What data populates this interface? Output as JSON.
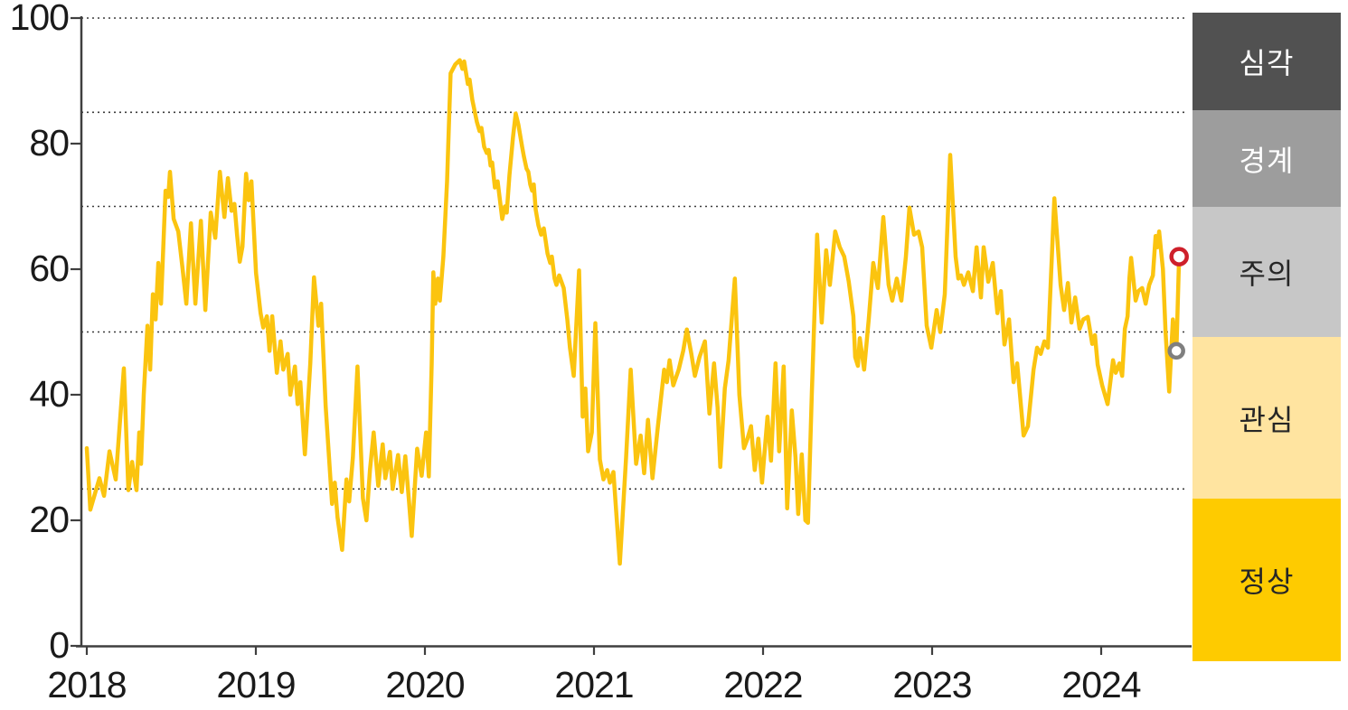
{
  "chart_data": {
    "type": "line",
    "title": "",
    "x_axis": {
      "tick_labels": [
        "2018",
        "2019",
        "2020",
        "2021",
        "2022",
        "2023",
        "2024"
      ],
      "tick_year_offsets": [
        0,
        1,
        2,
        3,
        4,
        5,
        6
      ],
      "range_years": [
        2018,
        2024.5
      ]
    },
    "y_axis": {
      "ticks": [
        0,
        20,
        40,
        60,
        80,
        100
      ],
      "range": [
        0,
        100
      ],
      "dotted_gridlines_at": [
        25,
        50,
        70,
        85,
        100
      ]
    },
    "line_color": "#FBC40F",
    "zones": [
      {
        "key": "severe",
        "label": "심각",
        "range": [
          85,
          100
        ],
        "color": "#515151",
        "text_color": "#ffffff"
      },
      {
        "key": "alert",
        "label": "경계",
        "range": [
          70,
          85
        ],
        "color": "#9D9D9D",
        "text_color": "#ffffff"
      },
      {
        "key": "caution",
        "label": "주의",
        "range": [
          50,
          70
        ],
        "color": "#C7C7C7",
        "text_color": "#262626"
      },
      {
        "key": "attention",
        "label": "관심",
        "range": [
          25,
          50
        ],
        "color": "#FFE4A0",
        "text_color": "#262626"
      },
      {
        "key": "normal",
        "label": "정상",
        "range": [
          0,
          25
        ],
        "color": "#FECB00",
        "text_color": "#262626"
      }
    ],
    "markers": [
      {
        "key": "previous-point",
        "year_offset": 6.445,
        "value": 47,
        "color": "#7F7F7F",
        "radius": 7.5
      },
      {
        "key": "latest-point",
        "year_offset": 6.461,
        "value": 62,
        "color": "#CE202B",
        "radius": 8.5
      }
    ],
    "points_year_offset_value": [
      [
        0.0,
        31.5
      ],
      [
        0.021,
        21.7
      ],
      [
        0.075,
        26.7
      ],
      [
        0.102,
        23.9
      ],
      [
        0.134,
        31.0
      ],
      [
        0.171,
        26.5
      ],
      [
        0.219,
        44.2
      ],
      [
        0.246,
        24.8
      ],
      [
        0.268,
        29.3
      ],
      [
        0.294,
        24.8
      ],
      [
        0.31,
        34.0
      ],
      [
        0.321,
        29.0
      ],
      [
        0.337,
        40.0
      ],
      [
        0.359,
        51.0
      ],
      [
        0.375,
        44.0
      ],
      [
        0.391,
        56.0
      ],
      [
        0.407,
        52.0
      ],
      [
        0.423,
        61.0
      ],
      [
        0.439,
        54.5
      ],
      [
        0.466,
        72.5
      ],
      [
        0.482,
        71.5
      ],
      [
        0.492,
        75.5
      ],
      [
        0.514,
        68.0
      ],
      [
        0.541,
        66.0
      ],
      [
        0.567,
        60.0
      ],
      [
        0.589,
        54.5
      ],
      [
        0.616,
        67.3
      ],
      [
        0.642,
        54.5
      ],
      [
        0.675,
        67.7
      ],
      [
        0.701,
        53.5
      ],
      [
        0.733,
        69.0
      ],
      [
        0.76,
        65.0
      ],
      [
        0.787,
        75.5
      ],
      [
        0.814,
        68.3
      ],
      [
        0.835,
        74.5
      ],
      [
        0.856,
        69.3
      ],
      [
        0.873,
        70.4
      ],
      [
        0.889,
        65.5
      ],
      [
        0.905,
        61.2
      ],
      [
        0.921,
        63.6
      ],
      [
        0.942,
        75.2
      ],
      [
        0.958,
        71.0
      ],
      [
        0.974,
        74.0
      ],
      [
        1.001,
        59.4
      ],
      [
        1.028,
        53.0
      ],
      [
        1.044,
        50.7
      ],
      [
        1.065,
        52.5
      ],
      [
        1.081,
        47.0
      ],
      [
        1.097,
        52.5
      ],
      [
        1.124,
        43.5
      ],
      [
        1.146,
        48.5
      ],
      [
        1.162,
        44.0
      ],
      [
        1.188,
        46.5
      ],
      [
        1.204,
        40.0
      ],
      [
        1.231,
        44.5
      ],
      [
        1.247,
        38.5
      ],
      [
        1.263,
        42.0
      ],
      [
        1.29,
        30.5
      ],
      [
        1.322,
        45.0
      ],
      [
        1.344,
        58.7
      ],
      [
        1.37,
        51.0
      ],
      [
        1.386,
        54.5
      ],
      [
        1.413,
        38.2
      ],
      [
        1.429,
        31.6
      ],
      [
        1.451,
        22.6
      ],
      [
        1.467,
        26.0
      ],
      [
        1.483,
        20.5
      ],
      [
        1.51,
        15.3
      ],
      [
        1.536,
        26.5
      ],
      [
        1.552,
        23.0
      ],
      [
        1.574,
        30.0
      ],
      [
        1.601,
        44.5
      ],
      [
        1.633,
        23.5
      ],
      [
        1.654,
        20.0
      ],
      [
        1.675,
        28.0
      ],
      [
        1.697,
        34.0
      ],
      [
        1.724,
        25.5
      ],
      [
        1.75,
        32.1
      ],
      [
        1.766,
        26.7
      ],
      [
        1.793,
        30.9
      ],
      [
        1.809,
        25.0
      ],
      [
        1.841,
        30.4
      ],
      [
        1.863,
        24.5
      ],
      [
        1.884,
        30.2
      ],
      [
        1.906,
        23.0
      ],
      [
        1.922,
        17.5
      ],
      [
        1.954,
        31.4
      ],
      [
        1.981,
        27.1
      ],
      [
        2.007,
        34.0
      ],
      [
        2.023,
        27.0
      ],
      [
        2.04,
        45.0
      ],
      [
        2.05,
        59.5
      ],
      [
        2.061,
        54.5
      ],
      [
        2.077,
        58.5
      ],
      [
        2.088,
        55.0
      ],
      [
        2.109,
        62.0
      ],
      [
        2.131,
        74.0
      ],
      [
        2.152,
        91.2
      ],
      [
        2.179,
        92.6
      ],
      [
        2.206,
        93.3
      ],
      [
        2.222,
        91.9
      ],
      [
        2.232,
        93.1
      ],
      [
        2.254,
        89.5
      ],
      [
        2.264,
        90.2
      ],
      [
        2.28,
        87.0
      ],
      [
        2.307,
        83.5
      ],
      [
        2.323,
        82.0
      ],
      [
        2.334,
        82.5
      ],
      [
        2.35,
        79.5
      ],
      [
        2.366,
        78.5
      ],
      [
        2.377,
        79.0
      ],
      [
        2.388,
        76.5
      ],
      [
        2.398,
        77.0
      ],
      [
        2.414,
        73.0
      ],
      [
        2.43,
        74.0
      ],
      [
        2.446,
        70.5
      ],
      [
        2.457,
        68.0
      ],
      [
        2.473,
        70.0
      ],
      [
        2.484,
        69.0
      ],
      [
        2.5,
        75.0
      ],
      [
        2.521,
        81.0
      ],
      [
        2.537,
        84.8
      ],
      [
        2.553,
        83.0
      ],
      [
        2.575,
        79.5
      ],
      [
        2.585,
        78.0
      ],
      [
        2.601,
        76.0
      ],
      [
        2.612,
        75.5
      ],
      [
        2.623,
        73.5
      ],
      [
        2.634,
        72.5
      ],
      [
        2.644,
        73.5
      ],
      [
        2.655,
        69.5
      ],
      [
        2.671,
        67.0
      ],
      [
        2.687,
        65.5
      ],
      [
        2.703,
        66.5
      ],
      [
        2.725,
        62.5
      ],
      [
        2.741,
        61.0
      ],
      [
        2.751,
        62.0
      ],
      [
        2.767,
        58.5
      ],
      [
        2.778,
        57.5
      ],
      [
        2.794,
        59.0
      ],
      [
        2.821,
        57.0
      ],
      [
        2.842,
        52.0
      ],
      [
        2.858,
        47.5
      ],
      [
        2.88,
        43.0
      ],
      [
        2.912,
        59.8
      ],
      [
        2.933,
        36.5
      ],
      [
        2.949,
        41.0
      ],
      [
        2.965,
        31.0
      ],
      [
        2.987,
        34.0
      ],
      [
        3.008,
        51.4
      ],
      [
        3.035,
        29.7
      ],
      [
        3.056,
        26.5
      ],
      [
        3.078,
        28.0
      ],
      [
        3.094,
        26.0
      ],
      [
        3.115,
        27.7
      ],
      [
        3.153,
        13.1
      ],
      [
        3.19,
        30.0
      ],
      [
        3.217,
        44.0
      ],
      [
        3.249,
        29.0
      ],
      [
        3.276,
        33.5
      ],
      [
        3.297,
        27.5
      ],
      [
        3.319,
        36.0
      ],
      [
        3.346,
        26.7
      ],
      [
        3.378,
        35.0
      ],
      [
        3.415,
        44.0
      ],
      [
        3.431,
        42.0
      ],
      [
        3.447,
        45.5
      ],
      [
        3.469,
        41.5
      ],
      [
        3.501,
        44.0
      ],
      [
        3.528,
        47.0
      ],
      [
        3.549,
        50.4
      ],
      [
        3.576,
        46.5
      ],
      [
        3.597,
        43.0
      ],
      [
        3.624,
        46.0
      ],
      [
        3.656,
        48.5
      ],
      [
        3.683,
        37.0
      ],
      [
        3.71,
        45.0
      ],
      [
        3.731,
        38.0
      ],
      [
        3.747,
        28.5
      ],
      [
        3.774,
        41.0
      ],
      [
        3.796,
        45.5
      ],
      [
        3.833,
        58.5
      ],
      [
        3.86,
        40.0
      ],
      [
        3.887,
        31.5
      ],
      [
        3.908,
        33.0
      ],
      [
        3.929,
        35.0
      ],
      [
        3.951,
        28.0
      ],
      [
        3.972,
        33.0
      ],
      [
        3.994,
        26.0
      ],
      [
        4.026,
        36.5
      ],
      [
        4.047,
        29.5
      ],
      [
        4.074,
        45.0
      ],
      [
        4.095,
        31.0
      ],
      [
        4.122,
        44.5
      ],
      [
        4.143,
        21.9
      ],
      [
        4.17,
        37.5
      ],
      [
        4.192,
        30.0
      ],
      [
        4.208,
        21.0
      ],
      [
        4.229,
        30.5
      ],
      [
        4.25,
        20.0
      ],
      [
        4.266,
        19.6
      ],
      [
        4.288,
        40.0
      ],
      [
        4.32,
        65.5
      ],
      [
        4.347,
        51.5
      ],
      [
        4.373,
        63.0
      ],
      [
        4.395,
        57.5
      ],
      [
        4.427,
        66.0
      ],
      [
        4.454,
        63.5
      ],
      [
        4.48,
        62.0
      ],
      [
        4.507,
        58.0
      ],
      [
        4.534,
        52.5
      ],
      [
        4.545,
        46.0
      ],
      [
        4.561,
        44.6
      ],
      [
        4.572,
        49.0
      ],
      [
        4.598,
        44.0
      ],
      [
        4.625,
        52.0
      ],
      [
        4.652,
        61.0
      ],
      [
        4.679,
        57.0
      ],
      [
        4.711,
        68.3
      ],
      [
        4.743,
        57.5
      ],
      [
        4.764,
        55.0
      ],
      [
        4.791,
        58.5
      ],
      [
        4.818,
        55.0
      ],
      [
        4.845,
        62.0
      ],
      [
        4.866,
        69.8
      ],
      [
        4.893,
        65.5
      ],
      [
        4.92,
        66.0
      ],
      [
        4.941,
        63.5
      ],
      [
        4.968,
        51.0
      ],
      [
        4.995,
        47.5
      ],
      [
        5.027,
        53.5
      ],
      [
        5.048,
        50.0
      ],
      [
        5.075,
        56.0
      ],
      [
        5.107,
        78.2
      ],
      [
        5.139,
        62.0
      ],
      [
        5.155,
        58.5
      ],
      [
        5.171,
        59.0
      ],
      [
        5.188,
        57.5
      ],
      [
        5.214,
        59.5
      ],
      [
        5.241,
        56.5
      ],
      [
        5.263,
        63.5
      ],
      [
        5.289,
        55.5
      ],
      [
        5.305,
        63.5
      ],
      [
        5.332,
        58.0
      ],
      [
        5.359,
        61.0
      ],
      [
        5.386,
        53.0
      ],
      [
        5.407,
        56.5
      ],
      [
        5.428,
        48.0
      ],
      [
        5.455,
        52.0
      ],
      [
        5.482,
        42.0
      ],
      [
        5.503,
        45.0
      ],
      [
        5.541,
        33.5
      ],
      [
        5.567,
        35.0
      ],
      [
        5.6,
        44.0
      ],
      [
        5.621,
        47.5
      ],
      [
        5.642,
        46.5
      ],
      [
        5.664,
        48.5
      ],
      [
        5.685,
        47.5
      ],
      [
        5.723,
        71.3
      ],
      [
        5.76,
        57.5
      ],
      [
        5.781,
        53.5
      ],
      [
        5.803,
        57.8
      ],
      [
        5.824,
        51.5
      ],
      [
        5.846,
        55.5
      ],
      [
        5.872,
        50.5
      ],
      [
        5.894,
        52.0
      ],
      [
        5.921,
        52.4
      ],
      [
        5.947,
        48.1
      ],
      [
        5.963,
        49.5
      ],
      [
        5.979,
        44.8
      ],
      [
        6.006,
        41.5
      ],
      [
        6.038,
        38.5
      ],
      [
        6.07,
        45.5
      ],
      [
        6.086,
        43.5
      ],
      [
        6.108,
        45.0
      ],
      [
        6.124,
        43.0
      ],
      [
        6.14,
        50.5
      ],
      [
        6.156,
        52.5
      ],
      [
        6.167,
        58.5
      ],
      [
        6.177,
        61.8
      ],
      [
        6.204,
        55.0
      ],
      [
        6.22,
        56.5
      ],
      [
        6.242,
        57.0
      ],
      [
        6.263,
        54.5
      ],
      [
        6.284,
        57.5
      ],
      [
        6.306,
        59.0
      ],
      [
        6.322,
        65.3
      ],
      [
        6.333,
        63.5
      ],
      [
        6.343,
        66.0
      ],
      [
        6.365,
        60.0
      ],
      [
        6.381,
        50.0
      ],
      [
        6.402,
        40.5
      ],
      [
        6.424,
        52.0
      ],
      [
        6.445,
        47.0
      ],
      [
        6.461,
        62.0
      ]
    ]
  },
  "layout_colors": {
    "background": "#ffffff",
    "axis": "#3F3F3F",
    "gridline": "#3C3C3C",
    "tick_text": "#1a1a1a"
  }
}
